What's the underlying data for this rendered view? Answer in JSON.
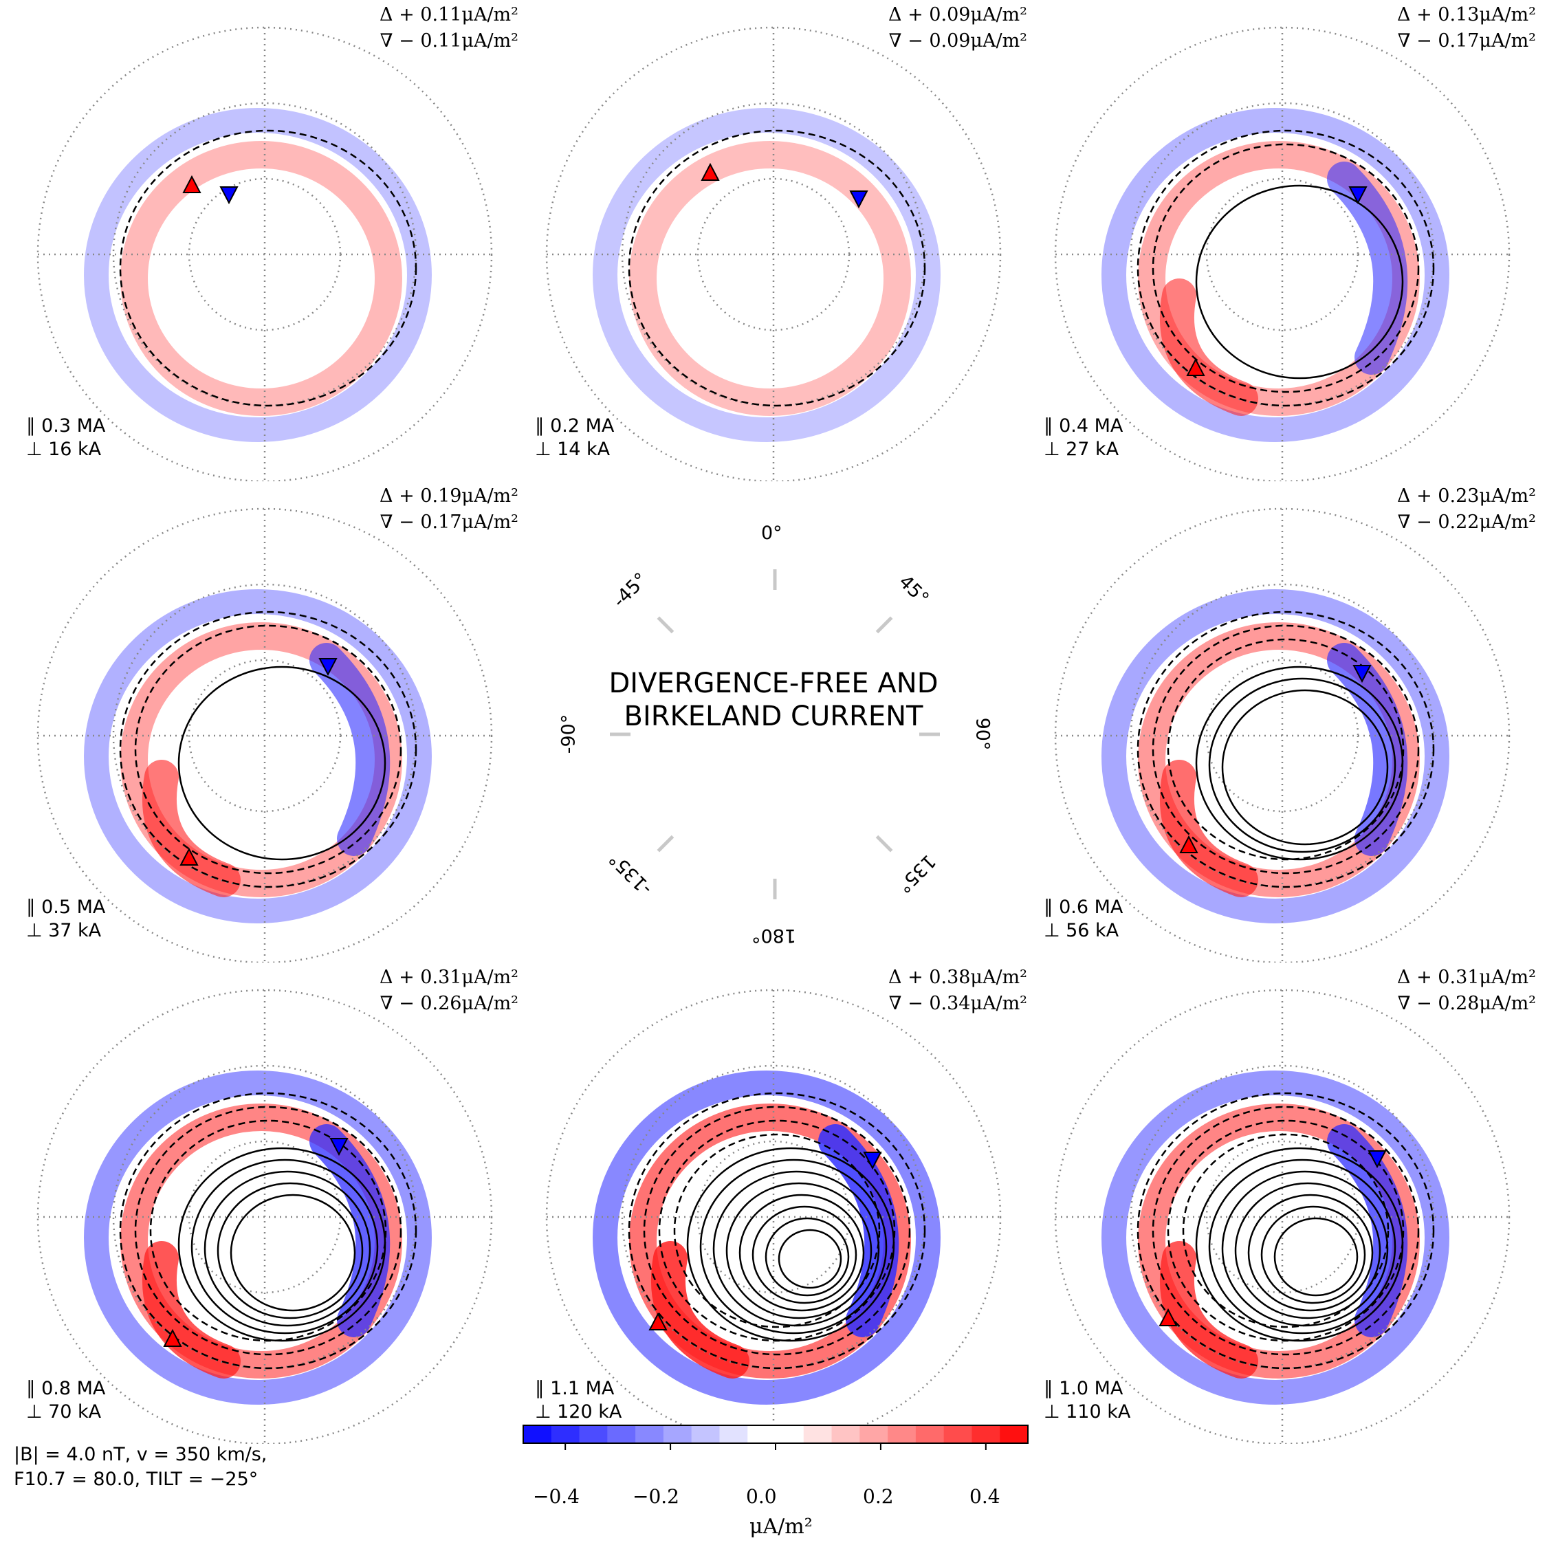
{
  "chart_data": {
    "type": "heatmap",
    "title": "DIVERGENCE-FREE AND BIRKELAND CURRENT",
    "colorbar": {
      "label": "μA/m²",
      "ticks": [
        "−0.4",
        "−0.2",
        "0.0",
        "0.2",
        "0.4"
      ],
      "range": [
        -0.48,
        0.48
      ],
      "colors": [
        "#1010ff",
        "#2e2eff",
        "#4c4cff",
        "#6a6aff",
        "#8888ff",
        "#a6a6ff",
        "#c4c4ff",
        "#e2e2ff",
        "#ffffff",
        "#ffffff",
        "#ffe2e2",
        "#ffc4c4",
        "#ffa6a6",
        "#ff8888",
        "#ff6a6a",
        "#ff4c4c",
        "#ff2e2e",
        "#ff1010"
      ]
    },
    "orientation_labels": [
      "0°",
      "45°",
      "90°",
      "135°",
      "180°",
      "-135°",
      "-90°",
      "-45°"
    ],
    "parameters": [
      "|B| = 4.0 nT, v = 350 km/s,",
      "F10.7 = 80.0, TILT = −25°"
    ],
    "panels": [
      {
        "max": "Δ + 0.11μA/m²",
        "min": "∇ − 0.11μA/m²",
        "birkeland": "∥ 0.3 MA",
        "df": "⊥ 16 kA",
        "amp": 0.11,
        "nrings": 1,
        "solid": 0,
        "up": [
          -106,
          -100
        ],
        "down": [
          -52,
          -88
        ]
      },
      {
        "max": "Δ + 0.09μA/m²",
        "min": "∇ − 0.09μA/m²",
        "birkeland": "∥ 0.2 MA",
        "df": "⊥ 14 kA",
        "amp": 0.09,
        "nrings": 1,
        "solid": 0,
        "up": [
          -92,
          -118
        ],
        "down": [
          124,
          -82
        ]
      },
      {
        "max": "Δ + 0.13μA/m²",
        "min": "∇ − 0.17μA/m²",
        "birkeland": "∥ 0.4 MA",
        "df": "⊥ 27 kA",
        "amp": 0.17,
        "nrings": 2,
        "solid": 1,
        "up": [
          -126,
          166
        ],
        "down": [
          110,
          -88
        ]
      },
      {
        "max": "Δ + 0.19μA/m²",
        "min": "∇ − 0.17μA/m²",
        "birkeland": "∥ 0.5 MA",
        "df": "⊥ 37 kA",
        "amp": 0.19,
        "nrings": 2,
        "solid": 1,
        "up": [
          -110,
          178
        ],
        "down": [
          92,
          -102
        ]
      },
      null,
      {
        "max": "Δ + 0.23μA/m²",
        "min": "∇ − 0.22μA/m²",
        "birkeland": "∥ 0.6 MA",
        "df": "⊥ 56 kA",
        "amp": 0.23,
        "nrings": 3,
        "solid": 3,
        "up": [
          -136,
          160
        ],
        "down": [
          116,
          -92
        ]
      },
      {
        "max": "Δ + 0.31μA/m²",
        "min": "∇ − 0.26μA/m²",
        "birkeland": "∥ 0.8 MA",
        "df": "⊥ 70 kA",
        "amp": 0.31,
        "nrings": 3,
        "solid": 5,
        "up": [
          -134,
          178
        ],
        "down": [
          108,
          -104
        ]
      },
      {
        "max": "Δ + 0.38μA/m²",
        "min": "∇ − 0.34μA/m²",
        "birkeland": "∥ 1.1 MA",
        "df": "⊥ 120 kA",
        "amp": 0.38,
        "nrings": 4,
        "solid": 8,
        "up": [
          -168,
          154
        ],
        "down": [
          144,
          -84
        ]
      },
      {
        "max": "Δ + 0.31μA/m²",
        "min": "∇ − 0.28μA/m²",
        "birkeland": "∥ 1.0 MA",
        "df": "⊥ 110 kA",
        "amp": 0.31,
        "nrings": 4,
        "solid": 7,
        "up": [
          -166,
          148
        ],
        "down": [
          138,
          -86
        ]
      }
    ]
  }
}
